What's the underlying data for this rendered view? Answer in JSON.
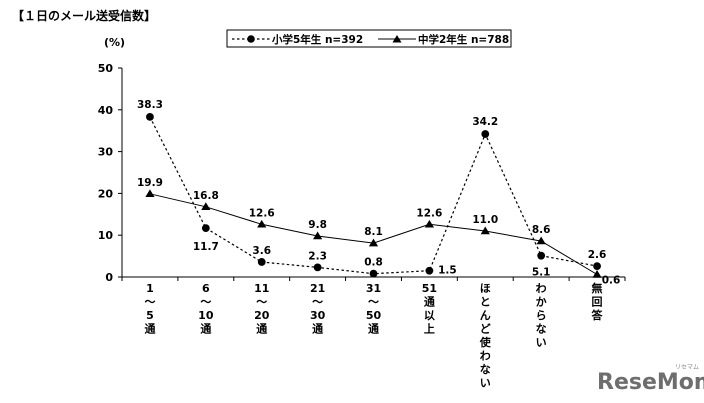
{
  "chart_data": {
    "type": "line",
    "title": "【１日のメール送受信数】",
    "ylabel": "(%)",
    "ylim": [
      0,
      50
    ],
    "y_ticks": [
      "0",
      "10",
      "20",
      "30",
      "40",
      "50"
    ],
    "categories": [
      [
        "1",
        "～",
        "5",
        "通"
      ],
      [
        "6",
        "～",
        "10",
        "通"
      ],
      [
        "11",
        "～",
        "20",
        "通"
      ],
      [
        "21",
        "～",
        "30",
        "通"
      ],
      [
        "31",
        "～",
        "50",
        "通"
      ],
      [
        "51",
        "通",
        "以",
        "上"
      ],
      [
        "ほ",
        "と",
        "ん",
        "ど",
        "使",
        "わ",
        "な",
        "い"
      ],
      [
        "わ",
        "か",
        "ら",
        "な",
        "い"
      ],
      [
        "無",
        "回",
        "答"
      ]
    ],
    "series": [
      {
        "name": "小学5年生 n=392",
        "style": "dotted",
        "marker": "circle",
        "values": [
          38.3,
          11.7,
          3.6,
          2.3,
          0.8,
          1.5,
          34.2,
          5.1,
          2.6
        ],
        "labels": [
          "38.3",
          "11.7",
          "3.6",
          "2.3",
          "0.8",
          "1.5",
          "34.2",
          "5.1",
          "2.6"
        ]
      },
      {
        "name": "中学2年生 n=788",
        "style": "solid",
        "marker": "triangle",
        "values": [
          19.9,
          16.8,
          12.6,
          9.8,
          8.1,
          12.6,
          11.0,
          8.6,
          0.6
        ],
        "labels": [
          "19.9",
          "16.8",
          "12.6",
          "9.8",
          "8.1",
          "12.6",
          "11.0",
          "8.6",
          "0.6"
        ]
      }
    ],
    "grid": false,
    "legend_position": "top-center"
  },
  "watermark": {
    "text": "ReseMom",
    "subtext": "リセマム"
  }
}
